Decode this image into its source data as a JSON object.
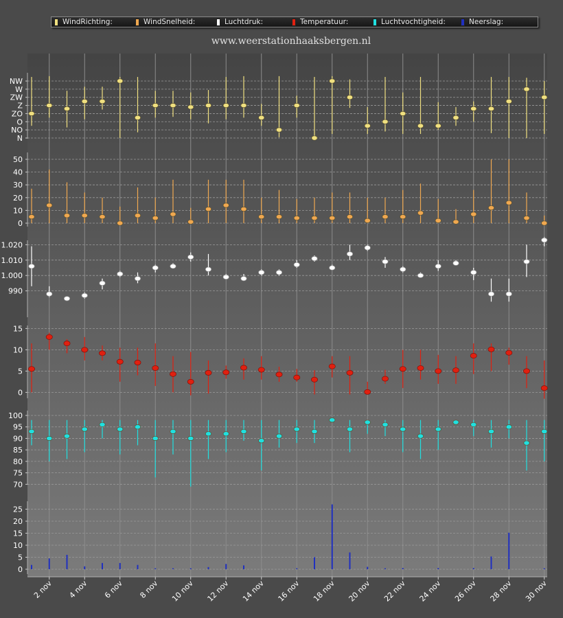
{
  "site_title": "www.weerstationhaaksbergen.nl",
  "legend": [
    {
      "label": "WindRichting:",
      "color": "#f0e080"
    },
    {
      "label": "WindSnelheid:",
      "color": "#f0a850"
    },
    {
      "label": "Luchtdruk:",
      "color": "#ffffff"
    },
    {
      "label": "Temperatuur:",
      "color": "#e02010"
    },
    {
      "label": "Luchtvochtigheid:",
      "color": "#20e0e0"
    },
    {
      "label": "Neerslag:",
      "color": "#2030c0"
    }
  ],
  "chart_data": {
    "type": "multi-panel",
    "x": {
      "days": [
        1,
        2,
        3,
        4,
        5,
        6,
        7,
        8,
        9,
        10,
        11,
        12,
        13,
        14,
        15,
        16,
        17,
        18,
        19,
        20,
        21,
        22,
        23,
        24,
        25,
        26,
        27,
        28,
        29,
        30
      ],
      "tick_labels": [
        "2 nov",
        "4 nov",
        "6 nov",
        "8 nov",
        "10 nov",
        "12 nov",
        "14 nov",
        "16 nov",
        "18 nov",
        "20 nov",
        "22 nov",
        "24 nov",
        "26 nov",
        "28 nov",
        "30 nov"
      ]
    },
    "panels": [
      {
        "name": "WindRichting",
        "type": "range-point",
        "color": "#f0e080",
        "ticks": [
          "N",
          "NO",
          "O",
          "ZO",
          "Z",
          "ZW",
          "W",
          "NW"
        ],
        "ymin": 0,
        "ymax": 7,
        "values": [
          3,
          4,
          3.6,
          4.5,
          4.5,
          7,
          2.5,
          4,
          4,
          3.8,
          4,
          4,
          4,
          2.5,
          1,
          4,
          0,
          7,
          5,
          1.5,
          2,
          3,
          1.5,
          1.5,
          2.5,
          3.6,
          3.6,
          4.5,
          6,
          5
        ],
        "lows": [
          1.5,
          2.5,
          1.3,
          2.3,
          3.5,
          0,
          0.7,
          2.5,
          2.6,
          2.3,
          1.8,
          2.3,
          2.5,
          1.5,
          0.1,
          2.5,
          0,
          0.5,
          3.7,
          0.5,
          0.8,
          0.5,
          0.5,
          1,
          1.5,
          2,
          0.6,
          0,
          0,
          0.5
        ],
        "highs": [
          7.5,
          7.6,
          5.8,
          6.3,
          6.3,
          7.5,
          7.5,
          5.8,
          5.8,
          5.6,
          5.9,
          7.5,
          7.6,
          4.2,
          7.6,
          5.2,
          7.5,
          7.6,
          7.2,
          3.8,
          7.5,
          5.6,
          7.5,
          4.4,
          3.8,
          4.5,
          7.5,
          7.5,
          7.4,
          7
        ]
      },
      {
        "name": "WindSnelheid",
        "type": "range-point",
        "color": "#f0a850",
        "ticks": [
          "0",
          "10",
          "20",
          "30",
          "40",
          "50"
        ],
        "ymin": 0,
        "ymax": 50,
        "values": [
          5,
          14,
          6,
          6,
          5,
          0,
          6,
          4,
          7,
          1,
          11,
          14,
          11,
          5,
          5,
          4,
          4,
          4,
          5,
          2,
          5,
          5,
          8,
          2,
          1,
          7,
          12,
          16,
          4,
          0
        ],
        "lows": [
          0,
          0,
          0,
          0,
          0,
          0,
          0,
          0,
          0,
          0,
          0,
          0,
          0,
          0,
          0,
          0,
          0,
          0,
          0,
          0,
          0,
          0,
          0,
          0,
          0,
          0,
          0,
          0,
          0,
          0
        ],
        "highs": [
          27,
          42,
          32,
          24,
          20,
          13,
          28,
          20,
          34,
          12,
          34,
          34,
          34,
          20,
          26,
          19,
          20,
          24,
          24,
          20,
          20,
          26,
          31,
          19,
          11,
          26,
          50,
          50,
          24,
          6
        ]
      },
      {
        "name": "Luchtdruk",
        "type": "range-point",
        "color": "#ffffff",
        "ticks": [
          "990",
          "1.000",
          "1.010",
          "1.020"
        ],
        "ymin": 980,
        "ymax": 1030,
        "values": [
          1006,
          988,
          985,
          987,
          995,
          1001,
          998,
          1005,
          1006,
          1012,
          1004,
          999,
          998,
          1002,
          1002,
          1007,
          1011,
          1005,
          1014,
          1018,
          1009,
          1004,
          1000,
          1006,
          1008,
          1002,
          988,
          988,
          1009,
          1023
        ],
        "lows": [
          993,
          986,
          984,
          985,
          991,
          999,
          995,
          1002,
          1005,
          1009,
          1000,
          999,
          997,
          1000,
          1000,
          1005,
          1009,
          1004,
          1010,
          1016,
          1005,
          1002,
          999,
          1003,
          1007,
          997,
          983,
          983,
          999,
          1019
        ],
        "highs": [
          1019,
          993,
          986,
          989,
          998,
          1003,
          1002,
          1007,
          1008,
          1015,
          1014,
          1001,
          1001,
          1004,
          1004,
          1010,
          1013,
          1007,
          1020,
          1020,
          1012,
          1006,
          1002,
          1010,
          1010,
          1005,
          998,
          998,
          1020,
          1025
        ]
      },
      {
        "name": "Temperatuur",
        "type": "range-point",
        "color": "#e02010",
        "ticks": [
          "0",
          "5",
          "10",
          "15"
        ],
        "ymin": -3,
        "ymax": 17,
        "values": [
          5.5,
          13,
          11.5,
          10,
          9.2,
          7.2,
          7,
          5.7,
          4.3,
          2.5,
          4.6,
          4.7,
          5.8,
          5.3,
          4.2,
          3.5,
          3,
          6.1,
          4.6,
          0.1,
          3.2,
          5.5,
          5.7,
          5,
          5.2,
          8.6,
          10.1,
          9.3,
          5,
          1
        ],
        "lows": [
          0,
          10,
          9.2,
          7.5,
          7.5,
          2.5,
          4,
          1.5,
          0,
          -0.7,
          -0.3,
          3.2,
          3,
          3,
          2.5,
          2.5,
          -0.5,
          3.5,
          -0.5,
          -0.5,
          2,
          1,
          3,
          2,
          2,
          4.3,
          5,
          6.5,
          1,
          -1.5
        ],
        "highs": [
          11.5,
          14,
          12.5,
          13,
          11,
          10.5,
          10.5,
          11.5,
          8.5,
          9.5,
          7.5,
          6.3,
          8,
          8.5,
          6,
          5.5,
          5.2,
          8.5,
          8.5,
          2.5,
          5.3,
          10,
          10,
          8.8,
          8.5,
          11.5,
          11.5,
          10.5,
          8.5,
          7.5
        ]
      },
      {
        "name": "Luchtvochtigheid",
        "type": "range-point",
        "color": "#20e0e0",
        "ticks": [
          "70",
          "75",
          "80",
          "85",
          "90",
          "95",
          "100"
        ],
        "ymin": 68,
        "ymax": 100,
        "values": [
          93,
          90,
          91,
          94,
          96,
          94,
          95,
          90,
          93,
          90,
          92,
          92,
          93,
          89,
          91,
          94,
          93,
          98,
          94,
          97,
          96,
          94,
          91,
          94,
          97,
          96,
          93,
          95,
          88,
          93
        ],
        "lows": [
          87,
          80,
          81,
          84,
          90,
          83,
          87,
          73,
          83,
          69,
          81,
          84,
          89,
          76,
          86,
          88,
          88,
          98,
          84,
          92,
          91,
          84,
          81,
          85,
          96,
          91,
          86,
          90,
          76,
          80
        ],
        "highs": [
          98,
          98,
          98,
          98,
          98,
          98,
          98,
          98,
          98,
          98,
          98,
          98,
          98,
          98,
          98,
          98,
          98,
          98,
          98,
          98,
          98,
          98,
          98,
          98,
          98,
          98,
          98,
          98,
          98,
          98
        ]
      },
      {
        "name": "Neerslag",
        "type": "bar",
        "color": "#2030c0",
        "ticks": [
          "0",
          "5",
          "10",
          "15",
          "20",
          "25"
        ],
        "ymin": 0,
        "ymax": 28,
        "values": [
          1.8,
          4.5,
          6,
          1.2,
          2.6,
          2.6,
          1.8,
          0.4,
          0.4,
          0.4,
          0.9,
          2.2,
          1.6,
          0,
          0,
          0.4,
          5,
          27,
          7,
          1,
          0.4,
          0.5,
          0,
          0.5,
          0,
          0.5,
          5.3,
          15.2,
          0,
          0.4
        ]
      }
    ]
  }
}
